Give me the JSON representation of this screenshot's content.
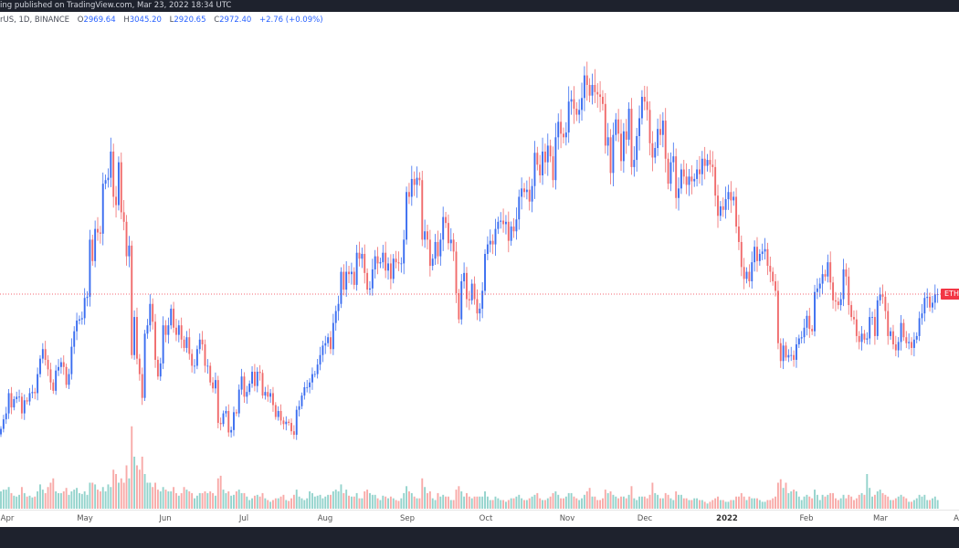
{
  "header": {
    "published_text": "ing published on TradingView.com, Mar 23, 2022 18:34 UTC"
  },
  "legend": {
    "symbol": "rUS, 1D, BINANCE",
    "open_label": "O",
    "open": "2969.64",
    "high_label": "H",
    "high": "3045.20",
    "low_label": "L",
    "low": "2920.65",
    "close_label": "C",
    "close": "2972.40",
    "change": "+2.76 (+0.09%)"
  },
  "price_label": "ETH",
  "colors": {
    "up": "#3a6df0",
    "down": "#f06b6c",
    "volume_up": "#93d3cc",
    "volume_down": "#f8aaa8",
    "price_line": "#f23645",
    "header_bg": "#1e222d",
    "value_text": "#2962ff"
  },
  "chart_data": {
    "type": "candlestick",
    "interval": "1D",
    "start_date": "2021-03-30",
    "end_date": "2022-03-23",
    "x_tick_labels": [
      "Apr",
      "May",
      "Jun",
      "Jul",
      "Aug",
      "Sep",
      "Oct",
      "Nov",
      "Dec",
      "2022",
      "Feb",
      "Mar",
      "A"
    ],
    "current_price": 2972.4,
    "grid": false,
    "close": [
      1840,
      1920,
      1970,
      2140,
      2020,
      2090,
      2110,
      2110,
      1970,
      2080,
      2070,
      2140,
      2150,
      2140,
      2300,
      2430,
      2510,
      2420,
      2340,
      2230,
      2160,
      2330,
      2360,
      2400,
      2360,
      2210,
      2300,
      2530,
      2660,
      2750,
      2760,
      2770,
      2940,
      2950,
      3430,
      3250,
      3520,
      3490,
      3480,
      3900,
      3930,
      3950,
      4170,
      3790,
      3720,
      4080,
      3660,
      3580,
      3290,
      3380,
      2460,
      2780,
      2430,
      2300,
      2100,
      2640,
      2710,
      2890,
      2740,
      2420,
      2280,
      2390,
      2710,
      2630,
      2710,
      2850,
      2690,
      2630,
      2710,
      2590,
      2520,
      2610,
      2470,
      2370,
      2370,
      2510,
      2590,
      2550,
      2370,
      2370,
      2230,
      2180,
      2250,
      1890,
      1880,
      1970,
      1990,
      1810,
      1830,
      1980,
      1970,
      2170,
      2280,
      2110,
      2150,
      2220,
      2320,
      2200,
      2320,
      2310,
      2120,
      2150,
      2110,
      2140,
      2040,
      1940,
      1990,
      1910,
      1880,
      1900,
      1890,
      1820,
      1790,
      2000,
      2030,
      2120,
      2190,
      2190,
      2230,
      2300,
      2300,
      2380,
      2460,
      2540,
      2560,
      2610,
      2510,
      2730,
      2830,
      2890,
      3160,
      3010,
      3160,
      3140,
      3160,
      3050,
      3320,
      3270,
      3310,
      3150,
      3010,
      3020,
      3180,
      3290,
      3230,
      3240,
      3320,
      3170,
      3230,
      3100,
      3270,
      3240,
      3230,
      3230,
      3430,
      3830,
      3790,
      3940,
      3890,
      3950,
      3930,
      3430,
      3500,
      3430,
      3210,
      3270,
      3410,
      3290,
      3430,
      3620,
      3570,
      3400,
      3430,
      3330,
      2980,
      2760,
      3080,
      3150,
      2930,
      2920,
      3060,
      2930,
      2810,
      2850,
      3000,
      3310,
      3390,
      3420,
      3390,
      3520,
      3580,
      3590,
      3560,
      3580,
      3420,
      3540,
      3500,
      3600,
      3790,
      3860,
      3830,
      3850,
      3750,
      3880,
      4160,
      4060,
      3970,
      4170,
      4080,
      4220,
      4130,
      3930,
      4290,
      4420,
      4320,
      4290,
      4330,
      4590,
      4610,
      4530,
      4480,
      4520,
      4620,
      4810,
      4730,
      4640,
      4730,
      4670,
      4650,
      4630,
      4570,
      4220,
      4290,
      3990,
      4310,
      4440,
      4320,
      4090,
      4340,
      4270,
      4530,
      4040,
      4100,
      4300,
      4450,
      4630,
      4590,
      4520,
      4240,
      4120,
      4200,
      4360,
      4310,
      4430,
      4110,
      3900,
      4080,
      4130,
      3780,
      3860,
      4020,
      3960,
      3890,
      3960,
      3920,
      3940,
      4020,
      3980,
      4110,
      4050,
      4100,
      4060,
      4040,
      3800,
      3630,
      3710,
      3680,
      3770,
      3830,
      3760,
      3790,
      3540,
      3410,
      3200,
      3100,
      3160,
      3080,
      3240,
      3370,
      3250,
      3310,
      3330,
      3350,
      3210,
      3160,
      3080,
      3000,
      2560,
      2410,
      2540,
      2440,
      2460,
      2460,
      2420,
      2550,
      2600,
      2610,
      2690,
      2790,
      2680,
      2660,
      2990,
      3020,
      3060,
      3140,
      3120,
      3240,
      3070,
      2920,
      2910,
      2880,
      2930,
      3180,
      3120,
      2880,
      2780,
      2760,
      2620,
      2570,
      2640,
      2590,
      2600,
      2780,
      2780,
      2620,
      2920,
      2970,
      2950,
      2830,
      2620,
      2660,
      2550,
      2500,
      2570,
      2730,
      2610,
      2560,
      2570,
      2520,
      2590,
      2620,
      2770,
      2810,
      2940,
      2950,
      2860,
      2900,
      2970,
      2972.4
    ],
    "volume": [
      20,
      22,
      22,
      25,
      18,
      15,
      14,
      16,
      25,
      18,
      14,
      15,
      13,
      14,
      20,
      28,
      22,
      18,
      25,
      30,
      35,
      20,
      18,
      18,
      20,
      24,
      16,
      20,
      22,
      24,
      18,
      17,
      20,
      16,
      30,
      30,
      28,
      22,
      20,
      25,
      20,
      28,
      25,
      45,
      40,
      30,
      35,
      30,
      50,
      35,
      95,
      60,
      50,
      45,
      60,
      40,
      30,
      30,
      25,
      30,
      22,
      20,
      25,
      22,
      20,
      20,
      25,
      18,
      15,
      18,
      25,
      22,
      20,
      18,
      12,
      15,
      18,
      18,
      20,
      18,
      20,
      18,
      15,
      35,
      38,
      22,
      18,
      20,
      15,
      16,
      20,
      22,
      18,
      18,
      14,
      10,
      12,
      15,
      16,
      14,
      18,
      12,
      10,
      8,
      10,
      12,
      12,
      14,
      16,
      10,
      9,
      12,
      16,
      22,
      14,
      12,
      10,
      12,
      20,
      18,
      14,
      15,
      16,
      12,
      14,
      16,
      16,
      20,
      22,
      20,
      28,
      18,
      22,
      15,
      14,
      14,
      18,
      12,
      12,
      20,
      22,
      18,
      16,
      16,
      12,
      10,
      15,
      14,
      12,
      14,
      12,
      10,
      9,
      12,
      18,
      26,
      20,
      18,
      14,
      12,
      12,
      35,
      25,
      18,
      20,
      12,
      10,
      18,
      14,
      16,
      14,
      14,
      10,
      10,
      22,
      26,
      20,
      14,
      18,
      14,
      12,
      14,
      14,
      14,
      14,
      20,
      14,
      10,
      10,
      14,
      12,
      10,
      10,
      8,
      10,
      12,
      12,
      14,
      16,
      12,
      10,
      10,
      12,
      14,
      16,
      18,
      12,
      10,
      10,
      12,
      14,
      18,
      20,
      16,
      12,
      12,
      14,
      18,
      18,
      14,
      12,
      10,
      12,
      16,
      20,
      24,
      14,
      14,
      10,
      10,
      12,
      22,
      18,
      20,
      16,
      14,
      12,
      14,
      14,
      12,
      16,
      26,
      12,
      10,
      14,
      14,
      14,
      12,
      16,
      30,
      18,
      16,
      12,
      12,
      18,
      16,
      12,
      10,
      20,
      16,
      16,
      12,
      12,
      10,
      10,
      12,
      12,
      10,
      10,
      8,
      6,
      8,
      10,
      12,
      14,
      10,
      10,
      8,
      8,
      10,
      10,
      14,
      14,
      18,
      14,
      10,
      14,
      12,
      12,
      12,
      10,
      8,
      8,
      10,
      10,
      12,
      14,
      30,
      34,
      24,
      30,
      18,
      20,
      22,
      20,
      14,
      10,
      14,
      16,
      14,
      12,
      22,
      16,
      10,
      16,
      14,
      16,
      18,
      18,
      12,
      10,
      12,
      16,
      12,
      16,
      14,
      10,
      12,
      16,
      18,
      16,
      40,
      24,
      14,
      16,
      20,
      22,
      18,
      16,
      14,
      10,
      10,
      12,
      14,
      16,
      14,
      12,
      8,
      8,
      10,
      12,
      16,
      14,
      16,
      10,
      10,
      12,
      14,
      10
    ]
  }
}
